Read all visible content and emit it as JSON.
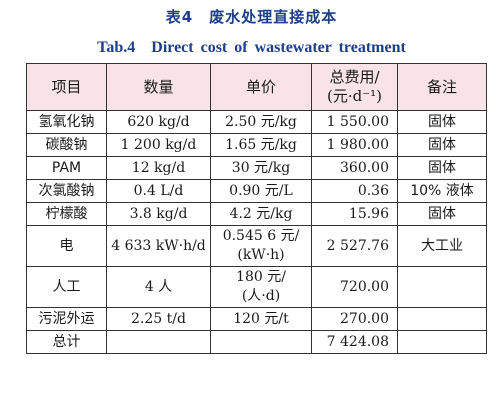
{
  "caption": {
    "cn": "表4　废水处理直接成本",
    "en": "Tab.4　Direct cost of wastewater treatment"
  },
  "headers": {
    "item": "项目",
    "quantity": "数量",
    "unit_price": "单价",
    "total_cost_l1": "总费用/",
    "total_cost_l2": "(元·d⁻¹)",
    "remark": "备注"
  },
  "rows": [
    {
      "item": "氢氧化钠",
      "quantity": "620 kg/d",
      "price_l1": "2.50 元/kg",
      "price_l2": "",
      "total": "1 550.00",
      "remark": "固体"
    },
    {
      "item": "碳酸钠",
      "quantity": "1 200 kg/d",
      "price_l1": "1.65 元/kg",
      "price_l2": "",
      "total": "1 980.00",
      "remark": "固体"
    },
    {
      "item": "PAM",
      "quantity": "12 kg/d",
      "price_l1": "30 元/kg",
      "price_l2": "",
      "total": "360.00",
      "remark": "固体"
    },
    {
      "item": "次氯酸钠",
      "quantity": "0.4 L/d",
      "price_l1": "0.90 元/L",
      "price_l2": "",
      "total": "0.36",
      "remark": "10% 液体"
    },
    {
      "item": "柠檬酸",
      "quantity": "3.8 kg/d",
      "price_l1": "4.2 元/kg",
      "price_l2": "",
      "total": "15.96",
      "remark": "固体"
    },
    {
      "item": "电",
      "quantity": "4 633 kW·h/d",
      "price_l1": "0.545 6 元/",
      "price_l2": "(kW·h)",
      "total": "2 527.76",
      "remark": "大工业"
    },
    {
      "item": "人工",
      "quantity": "4 人",
      "price_l1": "180 元/",
      "price_l2": "(人·d)",
      "total": "720.00",
      "remark": ""
    },
    {
      "item": "污泥外运",
      "quantity": "2.25 t/d",
      "price_l1": "120 元/t",
      "price_l2": "",
      "total": "270.00",
      "remark": ""
    },
    {
      "item": "总计",
      "quantity": "",
      "price_l1": "",
      "price_l2": "",
      "total": "7 424.08",
      "remark": ""
    }
  ]
}
